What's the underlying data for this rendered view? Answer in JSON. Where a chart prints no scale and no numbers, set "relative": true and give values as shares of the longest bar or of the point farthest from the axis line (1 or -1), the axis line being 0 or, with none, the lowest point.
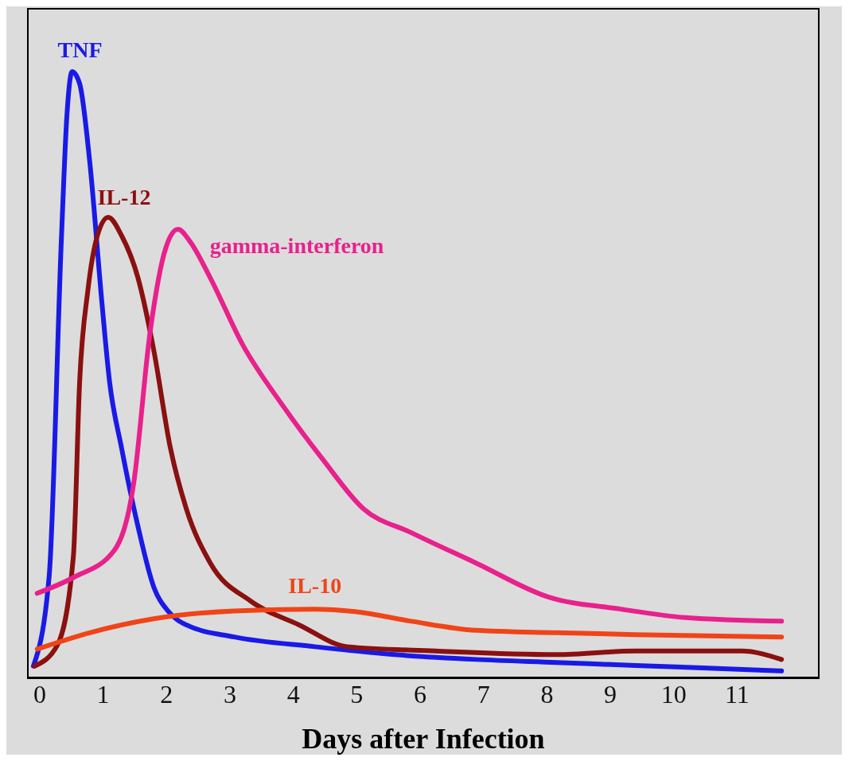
{
  "chart_data": {
    "type": "line",
    "xlabel": "Days after Infection",
    "relative": true,
    "xlim": [
      -0.2,
      12.3
    ],
    "xticks": [
      0,
      1,
      2,
      3,
      4,
      5,
      6,
      7,
      8,
      9,
      10,
      11
    ],
    "marker": "none",
    "line_style": "solid",
    "series": [
      {
        "name": "TNF",
        "color": "#1a1ae6",
        "x": [
          -0.1,
          0.15,
          0.34,
          0.43,
          0.51,
          0.63,
          0.79,
          0.98,
          1.1,
          1.29,
          1.55,
          1.8,
          2.03,
          2.31,
          3.07,
          4.34,
          5.6,
          6.88,
          8.15,
          9.4,
          10.7,
          11.7
        ],
        "values": [
          0.02,
          0.17,
          0.72,
          0.93,
          1.0,
          0.98,
          0.85,
          0.62,
          0.49,
          0.38,
          0.25,
          0.15,
          0.11,
          0.088,
          0.068,
          0.052,
          0.039,
          0.031,
          0.026,
          0.021,
          0.016,
          0.012
        ]
      },
      {
        "name": "IL-12",
        "color": "#8b1010",
        "x": [
          -0.08,
          0.28,
          0.53,
          0.63,
          0.76,
          0.91,
          1.08,
          1.29,
          1.55,
          1.8,
          2.06,
          2.31,
          2.69,
          3.33,
          4.09,
          4.85,
          6.24,
          8.15,
          9.4,
          11.07,
          11.7
        ],
        "values": [
          0.02,
          0.055,
          0.2,
          0.49,
          0.64,
          0.73,
          0.76,
          0.73,
          0.66,
          0.54,
          0.38,
          0.28,
          0.19,
          0.127,
          0.088,
          0.052,
          0.045,
          0.039,
          0.045,
          0.045,
          0.031
        ]
      },
      {
        "name": "gamma-interferon",
        "color": "#e8218c",
        "x": [
          -0.04,
          0.53,
          1.17,
          1.48,
          1.74,
          1.99,
          2.18,
          2.37,
          2.69,
          3.2,
          3.83,
          4.47,
          5.1,
          5.86,
          6.88,
          8.02,
          9.16,
          10.18,
          11.7
        ],
        "values": [
          0.14,
          0.166,
          0.21,
          0.32,
          0.57,
          0.71,
          0.74,
          0.72,
          0.66,
          0.55,
          0.45,
          0.36,
          0.28,
          0.24,
          0.19,
          0.134,
          0.114,
          0.1,
          0.094
        ]
      },
      {
        "name": "IL-10",
        "color": "#f04418",
        "x": [
          -0.04,
          0.79,
          1.8,
          3.07,
          4.34,
          4.97,
          5.86,
          6.88,
          8.15,
          9.4,
          11.7
        ],
        "values": [
          0.048,
          0.075,
          0.098,
          0.111,
          0.114,
          0.11,
          0.094,
          0.079,
          0.075,
          0.072,
          0.068
        ]
      }
    ]
  }
}
